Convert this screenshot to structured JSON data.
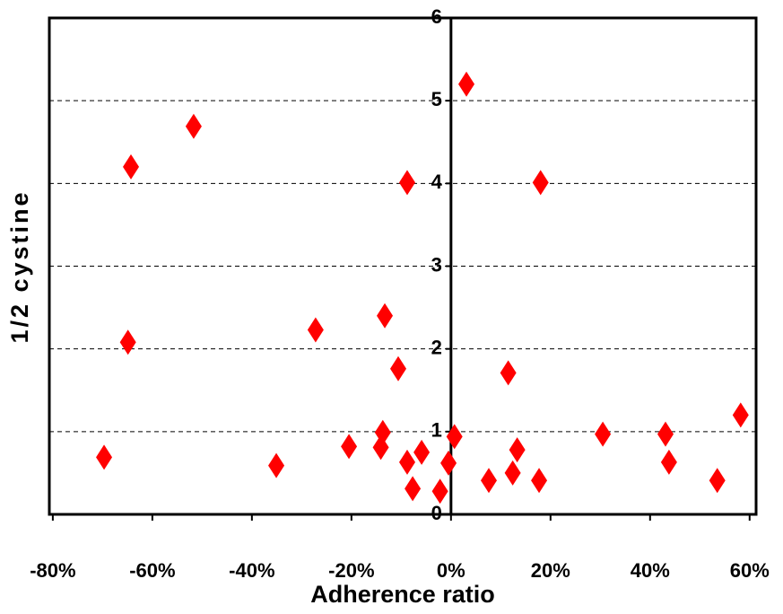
{
  "chart_data": {
    "type": "scatter",
    "x_label": "Adherence ratio",
    "y_label": "1/2 cystine",
    "color": "#ff0000",
    "x": [
      -69.7,
      -64.9,
      -64.3,
      -51.7,
      -35.1,
      -27.2,
      -20.5,
      -14.1,
      -13.7,
      -13.3,
      -10.6,
      -8.8,
      -8.8,
      -7.7,
      -5.9,
      -2.2,
      -0.5,
      0.7,
      3.1,
      7.6,
      11.5,
      12.4,
      13.3,
      17.7,
      18.0,
      30.5,
      43.1,
      43.8,
      53.5,
      58.2
    ],
    "values": [
      0.69,
      2.08,
      4.2,
      4.69,
      0.59,
      2.23,
      0.82,
      0.81,
      0.99,
      2.4,
      1.76,
      0.63,
      4.01,
      0.31,
      0.75,
      0.28,
      0.62,
      0.94,
      5.2,
      0.41,
      1.71,
      0.5,
      0.78,
      0.41,
      4.01,
      0.97,
      0.97,
      0.63,
      0.41,
      1.2
    ],
    "xlim": [
      -80.7,
      61.3
    ],
    "xticks": [
      {
        "value": -80,
        "label": "-80%"
      },
      {
        "value": -60,
        "label": "-60%"
      },
      {
        "value": -40,
        "label": "-40%"
      },
      {
        "value": -20,
        "label": "-20%"
      },
      {
        "value": 0,
        "label": "0%"
      },
      {
        "value": 20,
        "label": "20%"
      },
      {
        "value": 40,
        "label": "40%"
      },
      {
        "value": 60,
        "label": "60%"
      }
    ],
    "ylim": [
      0,
      6
    ],
    "yticks": [
      0,
      1,
      2,
      3,
      4,
      5,
      6
    ],
    "grid": true
  }
}
